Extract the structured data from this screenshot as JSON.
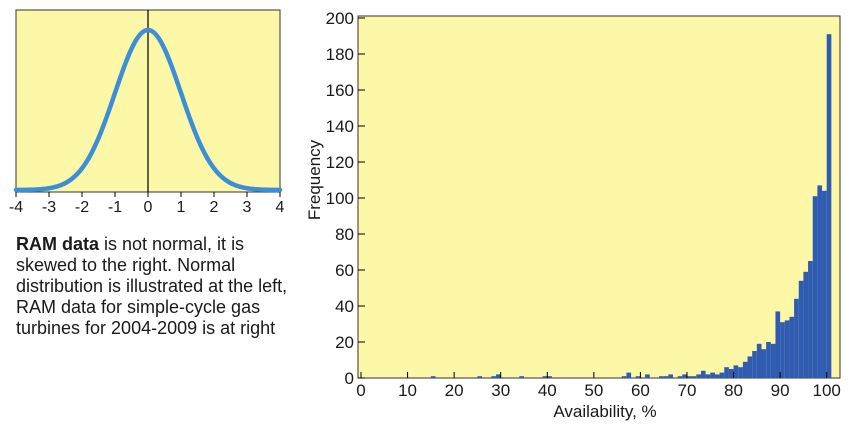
{
  "caption": {
    "bold": "RAM data",
    "text": " is not normal, it is skewed to the right. Normal distribution is illustrated at the left, RAM data for simple-cycle gas turbines for 2004-2009 is at right"
  },
  "colors": {
    "panel_bg": "#fdf7a8",
    "normal_curve": "#3b8ed8",
    "bars": "#2f5cb0"
  },
  "chart_data": [
    {
      "type": "line",
      "title": "",
      "xlabel": "",
      "ylabel": "",
      "xlim": [
        -4,
        4
      ],
      "x_ticks": [
        -4,
        -3,
        -2,
        -1,
        0,
        1,
        2,
        3,
        4
      ],
      "y_ticks": [],
      "grid": false,
      "curve": "standard normal density",
      "series": [
        {
          "x": [
            -4,
            -3.5,
            -3,
            -2.5,
            -2,
            -1.5,
            -1,
            -0.5,
            0,
            0.5,
            1,
            1.5,
            2,
            2.5,
            3,
            3.5,
            4
          ],
          "y": [
            0.0001,
            0.0009,
            0.0044,
            0.0175,
            0.054,
            0.1295,
            0.242,
            0.3521,
            0.3989,
            0.3521,
            0.242,
            0.1295,
            0.054,
            0.0175,
            0.0044,
            0.0009,
            0.0001
          ]
        }
      ]
    },
    {
      "type": "bar",
      "title": "",
      "xlabel": "Availability, %",
      "ylabel": "Frequency",
      "xlim": [
        0,
        102
      ],
      "ylim": [
        0,
        200
      ],
      "x_ticks": [
        0,
        10,
        20,
        30,
        40,
        50,
        60,
        70,
        80,
        90,
        100
      ],
      "y_ticks": [
        0,
        20,
        40,
        60,
        80,
        100,
        120,
        140,
        160,
        180,
        200
      ],
      "grid": false,
      "bin_width": 1,
      "series": [
        {
          "x": [
            15,
            25,
            28,
            29,
            34,
            39,
            40,
            56,
            57,
            59,
            61,
            64,
            65,
            66,
            68,
            69,
            70,
            71,
            72,
            73,
            74,
            75,
            76,
            77,
            78,
            79,
            80,
            81,
            82,
            83,
            84,
            85,
            86,
            87,
            88,
            89,
            90,
            91,
            92,
            93,
            94,
            95,
            96,
            97,
            98,
            99,
            100
          ],
          "y": [
            1,
            1,
            1,
            2,
            1,
            1,
            1,
            1,
            3,
            1,
            2,
            1,
            1,
            2,
            1,
            2,
            1,
            1,
            2,
            4,
            2,
            3,
            2,
            3,
            6,
            5,
            7,
            6,
            9,
            12,
            15,
            19,
            16,
            20,
            19,
            37,
            31,
            32,
            34,
            44,
            54,
            59,
            65,
            101,
            107,
            104,
            191
          ]
        }
      ]
    }
  ]
}
